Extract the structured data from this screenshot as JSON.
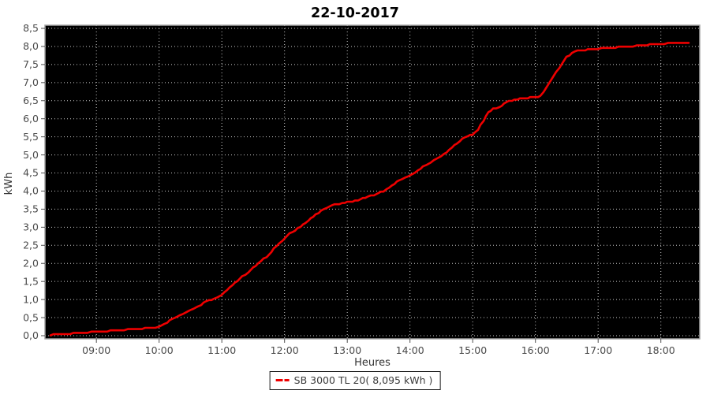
{
  "title": "22-10-2017",
  "colors": {
    "page_bg": "#ffffff",
    "plot_bg": "#000000",
    "grid": "#c9c9c9",
    "plot_outline": "#a3a3a3",
    "series": "#ee0000",
    "tick_text": "#4a4a4a",
    "axis_title_text": "#333333",
    "title_text": "#000000",
    "tick_mark": "#4d4d4d"
  },
  "legend": {
    "label": "SB 3000 TL 20( 8,095 kWh )"
  },
  "chart_data": {
    "type": "line",
    "title": "22-10-2017",
    "xlabel": "Heures",
    "ylabel": "kWh",
    "xlim": [
      8.18,
      18.62
    ],
    "ylim": [
      0,
      8.5
    ],
    "grid": true,
    "grid_style": "dotted",
    "legend_position": "bottom",
    "x_ticks": [
      {
        "value": 9,
        "label": "09:00"
      },
      {
        "value": 10,
        "label": "10:00"
      },
      {
        "value": 11,
        "label": "11:00"
      },
      {
        "value": 12,
        "label": "12:00"
      },
      {
        "value": 13,
        "label": "13:00"
      },
      {
        "value": 14,
        "label": "14:00"
      },
      {
        "value": 15,
        "label": "15:00"
      },
      {
        "value": 16,
        "label": "16:00"
      },
      {
        "value": 17,
        "label": "17:00"
      },
      {
        "value": 18,
        "label": "18:00"
      }
    ],
    "y_ticks": [
      {
        "value": 0.0,
        "label": "0,0"
      },
      {
        "value": 0.5,
        "label": "0,5"
      },
      {
        "value": 1.0,
        "label": "1,0"
      },
      {
        "value": 1.5,
        "label": "1,5"
      },
      {
        "value": 2.0,
        "label": "2,0"
      },
      {
        "value": 2.5,
        "label": "2,5"
      },
      {
        "value": 3.0,
        "label": "3,0"
      },
      {
        "value": 3.5,
        "label": "3,5"
      },
      {
        "value": 4.0,
        "label": "4,0"
      },
      {
        "value": 4.5,
        "label": "4,5"
      },
      {
        "value": 5.0,
        "label": "5,0"
      },
      {
        "value": 5.5,
        "label": "5,5"
      },
      {
        "value": 6.0,
        "label": "6,0"
      },
      {
        "value": 6.5,
        "label": "6,5"
      },
      {
        "value": 7.0,
        "label": "7,0"
      },
      {
        "value": 7.5,
        "label": "7,5"
      },
      {
        "value": 8.0,
        "label": "8,0"
      },
      {
        "value": 8.5,
        "label": "8,5"
      }
    ],
    "series": [
      {
        "name": "SB 3000 TL 20",
        "total_shown": "8,095 kWh",
        "color": "#ee0000",
        "points": [
          [
            8.27,
            0.02
          ],
          [
            8.42,
            0.04
          ],
          [
            8.58,
            0.06
          ],
          [
            8.75,
            0.08
          ],
          [
            8.92,
            0.1
          ],
          [
            9.0,
            0.11
          ],
          [
            9.17,
            0.13
          ],
          [
            9.33,
            0.15
          ],
          [
            9.5,
            0.17
          ],
          [
            9.67,
            0.19
          ],
          [
            9.83,
            0.21
          ],
          [
            10.0,
            0.24
          ],
          [
            10.08,
            0.31
          ],
          [
            10.17,
            0.42
          ],
          [
            10.25,
            0.5
          ],
          [
            10.33,
            0.57
          ],
          [
            10.42,
            0.64
          ],
          [
            10.5,
            0.71
          ],
          [
            10.58,
            0.78
          ],
          [
            10.67,
            0.86
          ],
          [
            10.75,
            0.94
          ],
          [
            10.83,
            1.0
          ],
          [
            10.92,
            1.07
          ],
          [
            11.0,
            1.14
          ],
          [
            11.08,
            1.27
          ],
          [
            11.17,
            1.4
          ],
          [
            11.25,
            1.52
          ],
          [
            11.33,
            1.64
          ],
          [
            11.42,
            1.76
          ],
          [
            11.5,
            1.88
          ],
          [
            11.58,
            2.0
          ],
          [
            11.67,
            2.12
          ],
          [
            11.75,
            2.25
          ],
          [
            11.83,
            2.4
          ],
          [
            11.92,
            2.55
          ],
          [
            12.0,
            2.7
          ],
          [
            12.08,
            2.82
          ],
          [
            12.17,
            2.92
          ],
          [
            12.25,
            3.02
          ],
          [
            12.33,
            3.12
          ],
          [
            12.42,
            3.24
          ],
          [
            12.5,
            3.35
          ],
          [
            12.58,
            3.45
          ],
          [
            12.67,
            3.54
          ],
          [
            12.75,
            3.6
          ],
          [
            12.83,
            3.64
          ],
          [
            12.92,
            3.66
          ],
          [
            13.0,
            3.69
          ],
          [
            13.08,
            3.71
          ],
          [
            13.17,
            3.74
          ],
          [
            13.25,
            3.8
          ],
          [
            13.33,
            3.85
          ],
          [
            13.42,
            3.89
          ],
          [
            13.5,
            3.94
          ],
          [
            13.58,
            4.0
          ],
          [
            13.67,
            4.1
          ],
          [
            13.75,
            4.21
          ],
          [
            13.83,
            4.3
          ],
          [
            13.92,
            4.36
          ],
          [
            14.0,
            4.42
          ],
          [
            14.08,
            4.52
          ],
          [
            14.17,
            4.62
          ],
          [
            14.25,
            4.72
          ],
          [
            14.33,
            4.8
          ],
          [
            14.42,
            4.88
          ],
          [
            14.5,
            4.97
          ],
          [
            14.58,
            5.08
          ],
          [
            14.67,
            5.2
          ],
          [
            14.75,
            5.32
          ],
          [
            14.83,
            5.44
          ],
          [
            14.92,
            5.52
          ],
          [
            15.0,
            5.56
          ],
          [
            15.08,
            5.68
          ],
          [
            15.17,
            5.95
          ],
          [
            15.25,
            6.18
          ],
          [
            15.33,
            6.27
          ],
          [
            15.42,
            6.31
          ],
          [
            15.5,
            6.42
          ],
          [
            15.58,
            6.49
          ],
          [
            15.67,
            6.52
          ],
          [
            15.75,
            6.55
          ],
          [
            15.83,
            6.57
          ],
          [
            15.92,
            6.59
          ],
          [
            16.0,
            6.6
          ],
          [
            16.08,
            6.63
          ],
          [
            16.17,
            6.85
          ],
          [
            16.25,
            7.08
          ],
          [
            16.33,
            7.3
          ],
          [
            16.42,
            7.52
          ],
          [
            16.5,
            7.7
          ],
          [
            16.58,
            7.82
          ],
          [
            16.67,
            7.88
          ],
          [
            16.75,
            7.9
          ],
          [
            16.83,
            7.91
          ],
          [
            16.92,
            7.92
          ],
          [
            17.0,
            7.94
          ],
          [
            17.17,
            7.96
          ],
          [
            17.33,
            7.98
          ],
          [
            17.5,
            8.0
          ],
          [
            17.67,
            8.02
          ],
          [
            17.83,
            8.05
          ],
          [
            18.0,
            8.07
          ],
          [
            18.17,
            8.09
          ],
          [
            18.33,
            8.1
          ],
          [
            18.45,
            8.1
          ]
        ]
      }
    ]
  }
}
